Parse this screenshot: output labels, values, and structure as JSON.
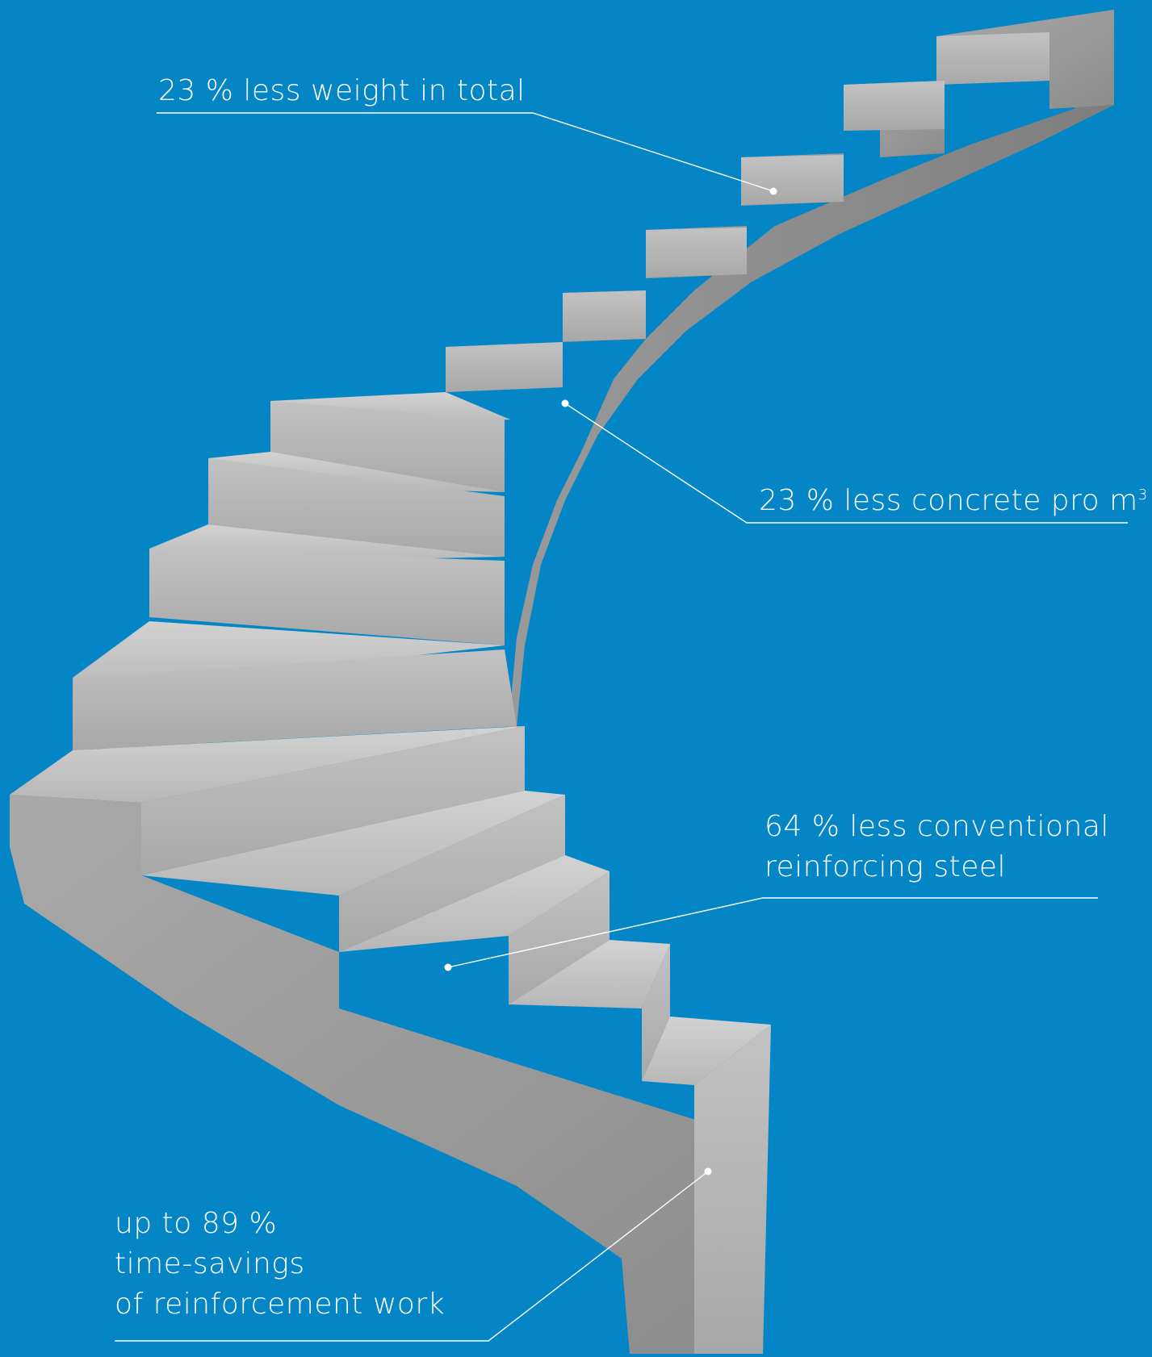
{
  "annotations": {
    "weight": {
      "text": "23 % less weight in total"
    },
    "concrete": {
      "text": "23 % less concrete pro m",
      "sup": "3"
    },
    "steel": {
      "lines": [
        "64 % less conventional",
        "reinforcing steel"
      ]
    },
    "time": {
      "lines": [
        "up to 89 %",
        "time-savings",
        "of reinforcement work"
      ]
    }
  },
  "colors": {
    "background": "#0486c6",
    "concrete_light": "#c9c9c9",
    "concrete_dark": "#8f8f8f",
    "leader_line": "#ffffff"
  },
  "illustration": "spiral-concrete-staircase"
}
